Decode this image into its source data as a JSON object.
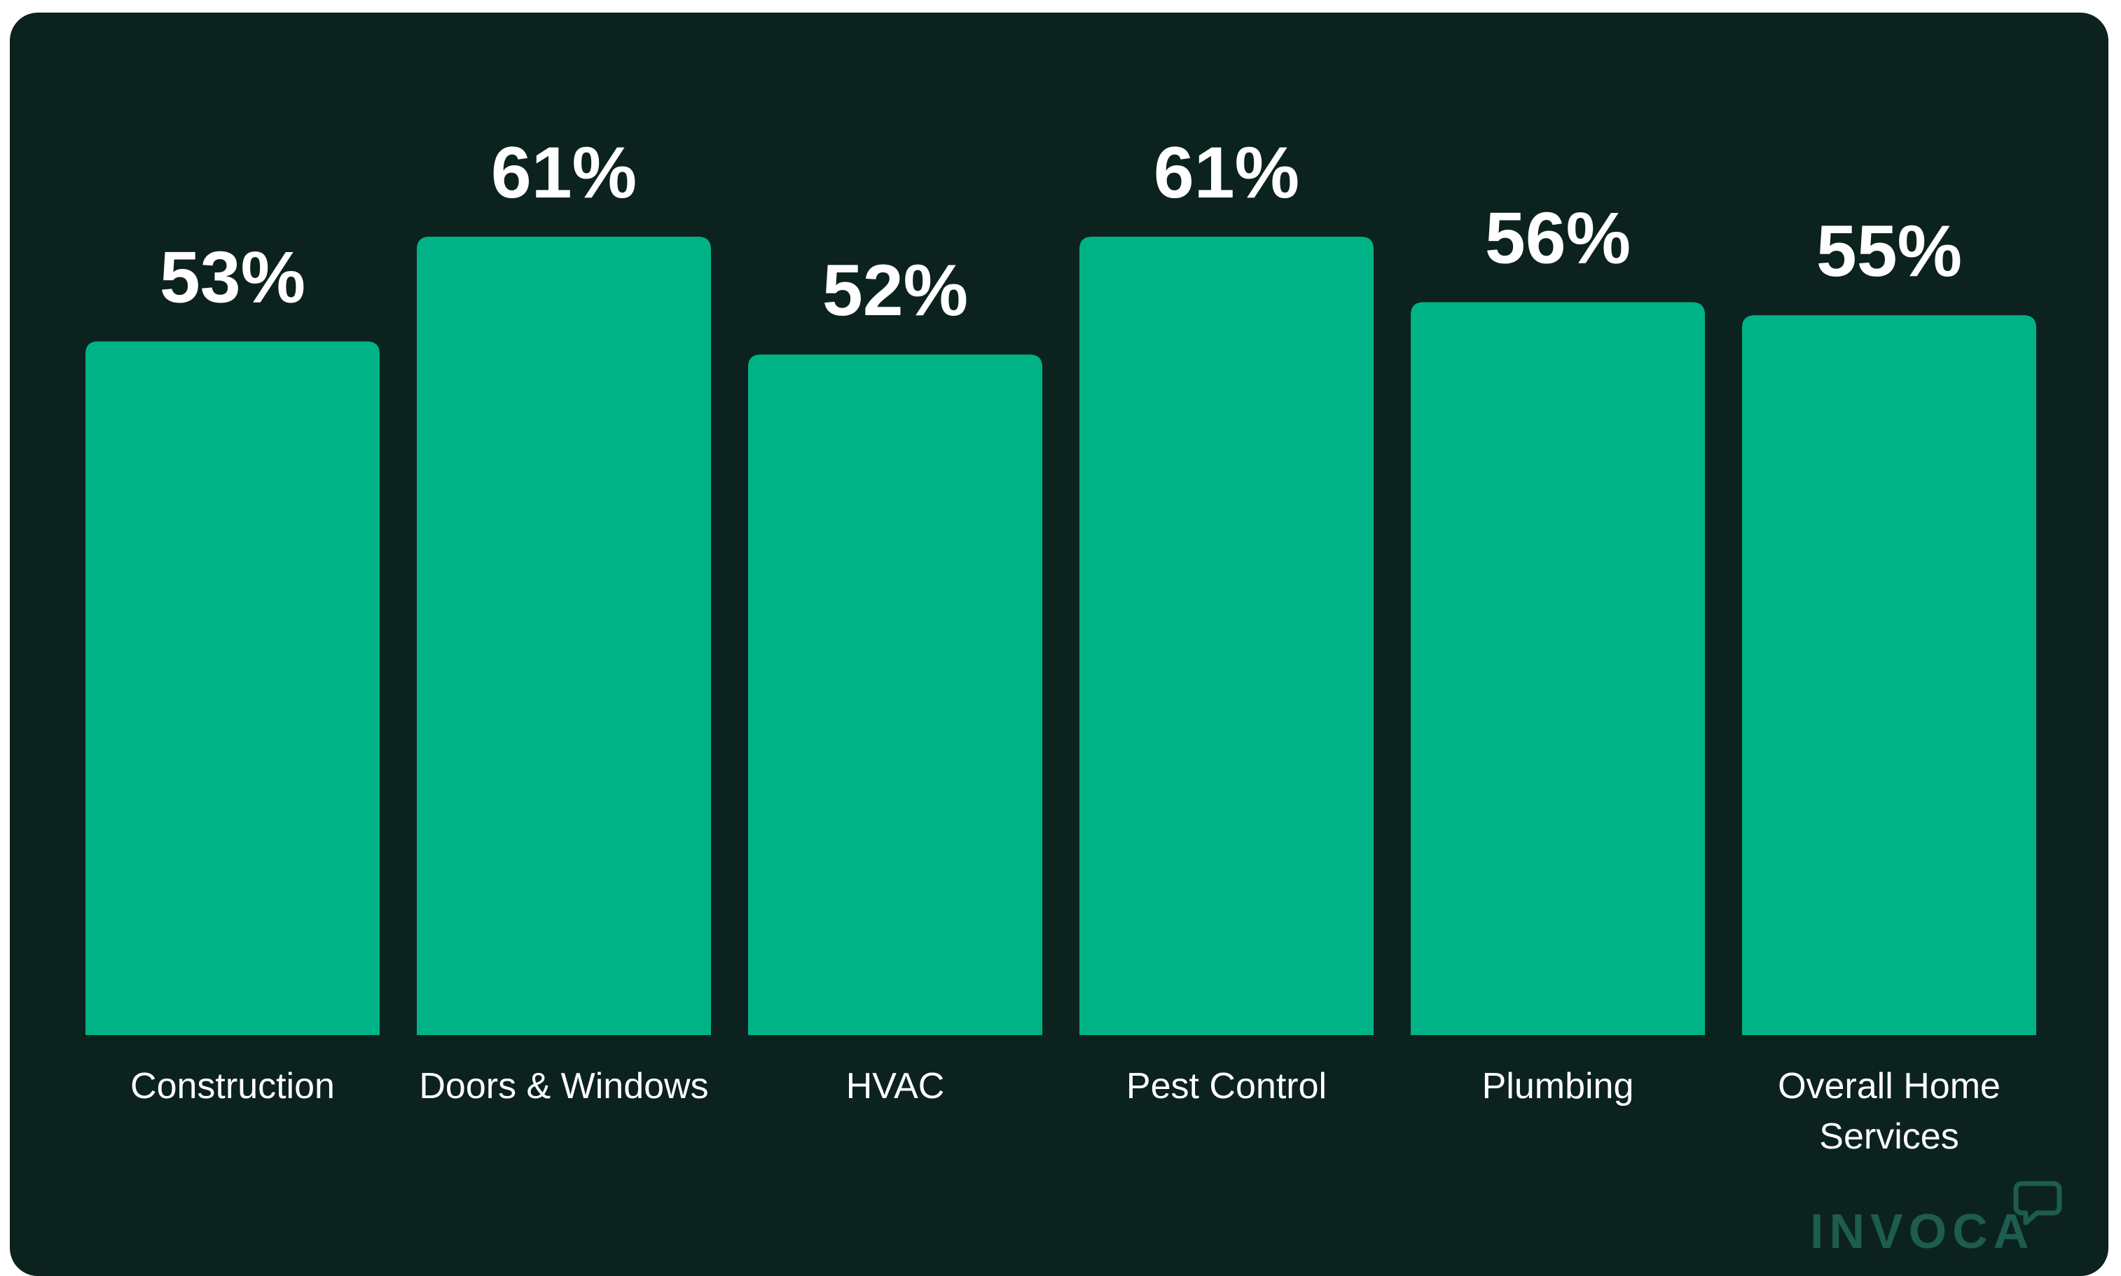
{
  "chart_data": {
    "type": "bar",
    "categories": [
      "Construction",
      "Doors & Windows",
      "HVAC",
      "Pest Control",
      "Plumbing",
      "Overall Home Services"
    ],
    "category_lines": [
      [
        "Construction"
      ],
      [
        "Doors & Windows"
      ],
      [
        "HVAC"
      ],
      [
        "Pest Control"
      ],
      [
        "Plumbing"
      ],
      [
        "Overall Home",
        "Services"
      ]
    ],
    "values": [
      53,
      61,
      52,
      61,
      56,
      55
    ],
    "value_labels": [
      "53%",
      "61%",
      "52%",
      "61%",
      "56%",
      "55%"
    ],
    "title": "",
    "xlabel": "",
    "ylabel": "",
    "ylim": [
      0,
      61
    ],
    "grid": false,
    "legend": "none",
    "colors": {
      "bar": "#00b386",
      "background": "#0c221e",
      "text": "#ffffff"
    }
  },
  "brand": {
    "logo_text": "INVOCA",
    "logo_color": "#1d5c4f"
  }
}
